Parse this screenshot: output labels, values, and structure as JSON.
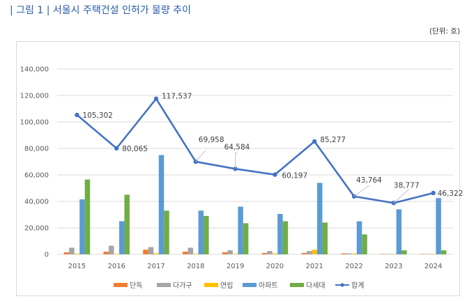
{
  "figure": {
    "title": "| 그림 1 |  서울시 주택건설 인허가 물량 추이",
    "unit": "(단위: 호)"
  },
  "chart_data": {
    "type": "bar",
    "title": "서울시 주택건설 인허가 물량 추이",
    "xlabel": "",
    "ylabel": "",
    "unit": "호",
    "ylim": [
      0,
      140000
    ],
    "yticks": [
      0,
      20000,
      40000,
      60000,
      80000,
      100000,
      120000,
      140000
    ],
    "ytick_labels": [
      "0",
      "20,000",
      "40,000",
      "60,000",
      "80,000",
      "100,000",
      "120,000",
      "140,000"
    ],
    "grid": true,
    "legend_position": "bottom",
    "categories": [
      "2015",
      "2016",
      "2017",
      "2018",
      "2019",
      "2020",
      "2021",
      "2022",
      "2023",
      "2024"
    ],
    "series": [
      {
        "name": "단독",
        "type": "bar",
        "color": "#ed7d31",
        "values": [
          1500,
          2000,
          3500,
          2000,
          1500,
          1000,
          1000,
          700,
          300,
          300
        ]
      },
      {
        "name": "다가구",
        "type": "bar",
        "color": "#a5a5a5",
        "values": [
          5000,
          6500,
          5500,
          5000,
          3000,
          2500,
          2500,
          700,
          300,
          300
        ]
      },
      {
        "name": "연립",
        "type": "bar",
        "color": "#ffc000",
        "values": [
          500,
          300,
          800,
          400,
          400,
          700,
          3500,
          600,
          200,
          200
        ]
      },
      {
        "name": "아파트",
        "type": "bar",
        "color": "#5b9bd5",
        "values": [
          41500,
          25000,
          75000,
          33000,
          36000,
          30500,
          54000,
          25000,
          34000,
          42500
        ]
      },
      {
        "name": "다세대",
        "type": "bar",
        "color": "#70ad47",
        "values": [
          56500,
          45000,
          33000,
          29000,
          23500,
          25000,
          24000,
          15000,
          3000,
          3000
        ]
      },
      {
        "name": "합계",
        "type": "line",
        "color": "#4472c4",
        "values": [
          105302,
          80065,
          117537,
          69958,
          64584,
          60197,
          85277,
          43764,
          38777,
          46322
        ],
        "labels": [
          "105,302",
          "80,065",
          "117,537",
          "69,958",
          "64,584",
          "60,197",
          "85,277",
          "43,764",
          "38,777",
          "46,322"
        ]
      }
    ]
  }
}
